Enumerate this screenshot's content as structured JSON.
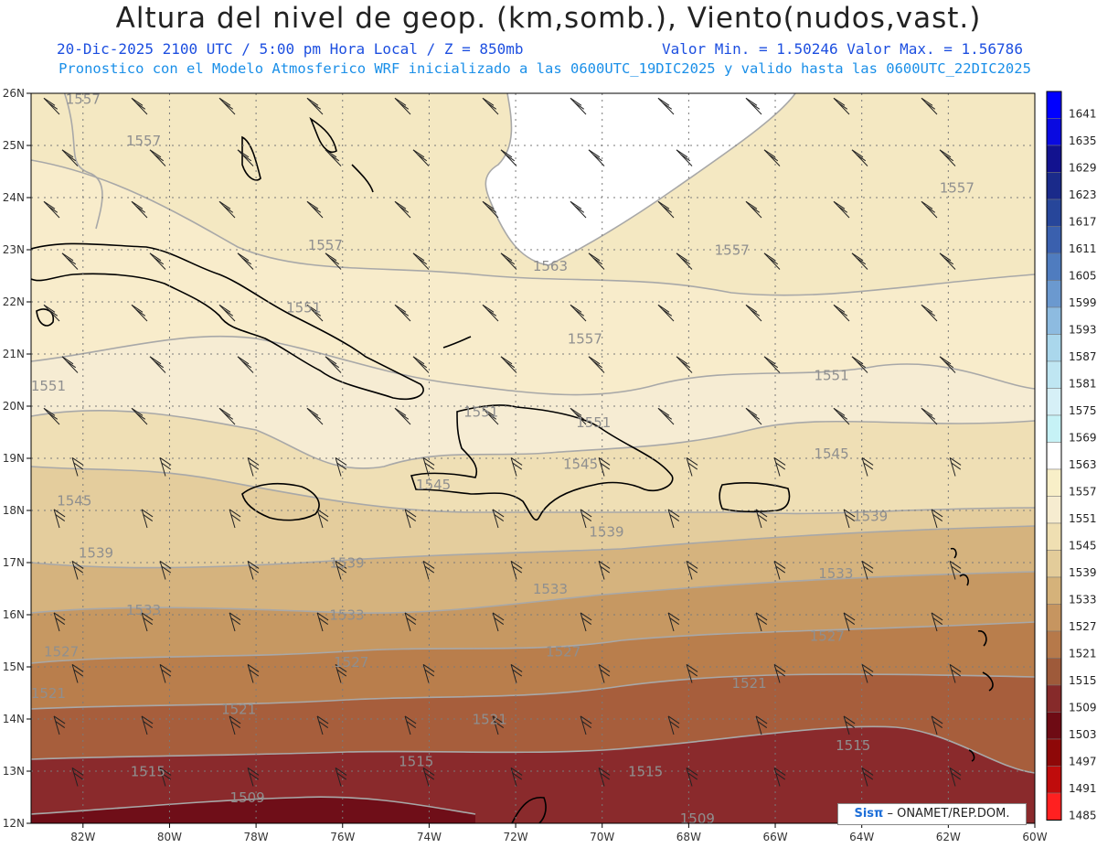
{
  "header": {
    "title": "Altura del nivel de geop. (km,somb.), Viento(nudos,vast.)",
    "date_time": "20-Dic-2025  2100 UTC / 5:00 pm Hora Local / Z = 850mb",
    "min_max": "Valor Min. = 1.50246  Valor Max. = 1.56786",
    "model_info": "Pronostico con el Modelo Atmosferico WRF inicializado a las 0600UTC_19DIC2025 y valido hasta las  0600UTC_22DIC2025"
  },
  "axes": {
    "lat_labels": [
      "26N",
      "25N",
      "24N",
      "23N",
      "22N",
      "21N",
      "20N",
      "19N",
      "18N",
      "17N",
      "16N",
      "15N",
      "14N",
      "13N",
      "12N"
    ],
    "lat_values": [
      26,
      25,
      24,
      23,
      22,
      21,
      20,
      19,
      18,
      17,
      16,
      15,
      14,
      13,
      12
    ],
    "lon_labels": [
      "82W",
      "80W",
      "78W",
      "76W",
      "74W",
      "72W",
      "70W",
      "68W",
      "66W",
      "64W",
      "62W",
      "60W"
    ],
    "lon_values": [
      -82,
      -80,
      -78,
      -76,
      -74,
      -72,
      -70,
      -68,
      -66,
      -64,
      -62,
      -60
    ],
    "lat_range": [
      12,
      26
    ],
    "lon_range": [
      -83.2,
      -60
    ]
  },
  "legend": {
    "levels": [
      "1641",
      "1635",
      "1629",
      "1623",
      "1617",
      "1611",
      "1605",
      "1599",
      "1593",
      "1587",
      "1581",
      "1575",
      "1569",
      "1563",
      "1557",
      "1551",
      "1545",
      "1539",
      "1533",
      "1527",
      "1521",
      "1515",
      "1509",
      "1503",
      "1497",
      "1491",
      "1485"
    ],
    "colors": [
      "#0000ff",
      "#0a0ae0",
      "#12128f",
      "#1a2a8a",
      "#27469a",
      "#3a60ae",
      "#4f7cbf",
      "#6b99cf",
      "#8dbbe0",
      "#aad7ec",
      "#bfe6f2",
      "#d6f0f7",
      "#c6f2f6",
      "#ffffff",
      "#f8efc8",
      "#f6ecd0",
      "#efdfb2",
      "#e3cc9a",
      "#d5b27a",
      "#c69560",
      "#b6794a",
      "#9e5a3a",
      "#862a2a",
      "#6e0b14",
      "#8e0808",
      "#bf0c0c",
      "#ff2020"
    ]
  },
  "contour_labels": [
    {
      "text": "1557",
      "lon": -82.0,
      "lat": 25.8
    },
    {
      "text": "1557",
      "lon": -80.6,
      "lat": 25.0
    },
    {
      "text": "1557",
      "lon": -76.4,
      "lat": 23.0
    },
    {
      "text": "1563",
      "lon": -71.2,
      "lat": 22.6
    },
    {
      "text": "1557",
      "lon": -67.0,
      "lat": 22.9
    },
    {
      "text": "1557",
      "lon": -61.8,
      "lat": 24.1
    },
    {
      "text": "1551",
      "lon": -76.9,
      "lat": 21.8
    },
    {
      "text": "1557",
      "lon": -70.4,
      "lat": 21.2
    },
    {
      "text": "1551",
      "lon": -82.8,
      "lat": 20.3
    },
    {
      "text": "1551",
      "lon": -64.7,
      "lat": 20.5
    },
    {
      "text": "1551",
      "lon": -72.8,
      "lat": 19.8
    },
    {
      "text": "1551",
      "lon": -70.2,
      "lat": 19.6
    },
    {
      "text": "1545",
      "lon": -64.7,
      "lat": 19.0
    },
    {
      "text": "1545",
      "lon": -70.5,
      "lat": 18.8
    },
    {
      "text": "1545",
      "lon": -73.9,
      "lat": 18.4
    },
    {
      "text": "1545",
      "lon": -82.2,
      "lat": 18.1
    },
    {
      "text": "1539",
      "lon": -63.8,
      "lat": 17.8
    },
    {
      "text": "1539",
      "lon": -69.9,
      "lat": 17.5
    },
    {
      "text": "1539",
      "lon": -75.9,
      "lat": 16.9
    },
    {
      "text": "1539",
      "lon": -81.7,
      "lat": 17.1
    },
    {
      "text": "1533",
      "lon": -64.6,
      "lat": 16.7
    },
    {
      "text": "1533",
      "lon": -71.2,
      "lat": 16.4
    },
    {
      "text": "1533",
      "lon": -75.9,
      "lat": 15.9
    },
    {
      "text": "1533",
      "lon": -80.6,
      "lat": 16.0
    },
    {
      "text": "1527",
      "lon": -64.8,
      "lat": 15.5
    },
    {
      "text": "1527",
      "lon": -70.9,
      "lat": 15.2
    },
    {
      "text": "1527",
      "lon": -75.8,
      "lat": 15.0
    },
    {
      "text": "1527",
      "lon": -82.5,
      "lat": 15.2
    },
    {
      "text": "1521",
      "lon": -66.6,
      "lat": 14.6
    },
    {
      "text": "1521",
      "lon": -72.6,
      "lat": 13.9
    },
    {
      "text": "1521",
      "lon": -78.4,
      "lat": 14.1
    },
    {
      "text": "1521",
      "lon": -82.8,
      "lat": 14.4
    },
    {
      "text": "1515",
      "lon": -64.2,
      "lat": 13.4
    },
    {
      "text": "1515",
      "lon": -74.3,
      "lat": 13.1
    },
    {
      "text": "1515",
      "lon": -69.0,
      "lat": 12.9
    },
    {
      "text": "1515",
      "lon": -80.5,
      "lat": 12.9
    },
    {
      "text": "1509",
      "lon": -78.2,
      "lat": 12.4
    },
    {
      "text": "1509",
      "lon": -67.8,
      "lat": 12.0
    }
  ],
  "wind_barbs": [
    {
      "rows": "north",
      "dir_deg": 60
    },
    {
      "rows": "south",
      "dir_deg": 80
    }
  ],
  "footer": {
    "logo": "Sisπ",
    "org": "– ONAMET/REP.DOM."
  }
}
